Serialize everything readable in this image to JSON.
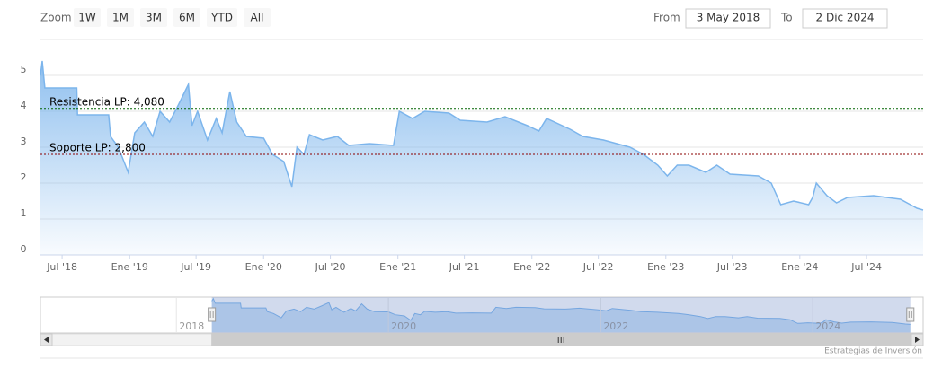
{
  "chart_data": {
    "type": "area",
    "range_selector": {
      "zoom_label": "Zoom",
      "buttons": [
        "1W",
        "1M",
        "3M",
        "6M",
        "YTD",
        "All"
      ],
      "from_label": "From",
      "from": "3 May 2018",
      "to_label": "To",
      "to": "2 Dic 2024"
    },
    "x": [
      "2018-05-03",
      "2018-05-08",
      "2018-05-15",
      "2018-08-10",
      "2018-08-12",
      "2018-11-05",
      "2018-11-10",
      "2018-12-01",
      "2018-12-28",
      "2019-01-15",
      "2019-02-10",
      "2019-03-05",
      "2019-03-25",
      "2019-04-20",
      "2019-05-15",
      "2019-06-10",
      "2019-06-20",
      "2019-07-05",
      "2019-08-01",
      "2019-08-25",
      "2019-09-10",
      "2019-10-01",
      "2019-10-20",
      "2019-11-15",
      "2020-01-01",
      "2020-01-25",
      "2020-02-25",
      "2020-03-18",
      "2020-04-01",
      "2020-04-20",
      "2020-05-05",
      "2020-06-10",
      "2020-07-20",
      "2020-08-20",
      "2020-10-15",
      "2020-12-20",
      "2021-01-05",
      "2021-02-10",
      "2021-03-15",
      "2021-05-20",
      "2021-06-20",
      "2021-09-01",
      "2021-10-20",
      "2021-12-20",
      "2022-01-20",
      "2022-02-10",
      "2022-04-15",
      "2022-05-20",
      "2022-07-15",
      "2022-09-25",
      "2022-11-01",
      "2022-12-10",
      "2023-01-05",
      "2023-02-01",
      "2023-03-05",
      "2023-04-20",
      "2023-05-20",
      "2023-06-25",
      "2023-09-10",
      "2023-10-15",
      "2023-11-10",
      "2023-12-15",
      "2024-01-25",
      "2024-02-05",
      "2024-02-15",
      "2024-03-15",
      "2024-04-10",
      "2024-05-10",
      "2024-07-20",
      "2024-10-01",
      "2024-11-15",
      "2024-12-02"
    ],
    "series": [
      {
        "color": "#7cb5ec",
        "values": [
          5.0,
          5.4,
          4.65,
          4.65,
          3.9,
          3.9,
          3.3,
          3.0,
          2.3,
          3.4,
          3.7,
          3.3,
          4.0,
          3.7,
          4.2,
          4.75,
          3.6,
          4.0,
          3.2,
          3.8,
          3.4,
          4.55,
          3.7,
          3.3,
          3.25,
          2.8,
          2.6,
          1.9,
          3.0,
          2.8,
          3.35,
          3.2,
          3.3,
          3.05,
          3.1,
          3.05,
          4.0,
          3.8,
          4.0,
          3.95,
          3.75,
          3.7,
          3.85,
          3.6,
          3.45,
          3.8,
          3.5,
          3.3,
          3.2,
          3.0,
          2.8,
          2.5,
          2.2,
          2.5,
          2.5,
          2.3,
          2.5,
          2.25,
          2.2,
          2.0,
          1.4,
          1.5,
          1.4,
          1.6,
          2.0,
          1.65,
          1.45,
          1.6,
          1.65,
          1.55,
          1.3,
          1.25
        ]
      }
    ],
    "xlim": [
      "2018-05-03",
      "2024-12-02"
    ],
    "xticks": [
      {
        "value": "2018-07-01",
        "label": "Jul '18"
      },
      {
        "value": "2019-01-01",
        "label": "Ene '19"
      },
      {
        "value": "2019-07-01",
        "label": "Jul '19"
      },
      {
        "value": "2020-01-01",
        "label": "Ene '20"
      },
      {
        "value": "2020-07-01",
        "label": "Jul '20"
      },
      {
        "value": "2021-01-01",
        "label": "Ene '21"
      },
      {
        "value": "2021-07-01",
        "label": "Jul '21"
      },
      {
        "value": "2022-01-01",
        "label": "Ene '22"
      },
      {
        "value": "2022-07-01",
        "label": "Jul '22"
      },
      {
        "value": "2023-01-01",
        "label": "Ene '23"
      },
      {
        "value": "2023-07-01",
        "label": "Jul '23"
      },
      {
        "value": "2024-01-01",
        "label": "Ene '24"
      },
      {
        "value": "2024-07-01",
        "label": "Jul '24"
      }
    ],
    "ylim": [
      0,
      6
    ],
    "yticks": [
      0,
      1,
      2,
      3,
      4,
      5
    ],
    "grid": true,
    "plot_lines": [
      {
        "value": 4.08,
        "label": "Resistencia LP: 4,080",
        "color": "#006400"
      },
      {
        "value": 2.8,
        "label": "Soporte LP: 2,800",
        "color": "#8b0000"
      }
    ],
    "navigator": {
      "xlim": [
        "2016-09-20",
        "2025-01-15"
      ],
      "ylim": [
        0,
        5.5
      ],
      "xticks": [
        {
          "value": "2018-01-01",
          "label": "2018"
        },
        {
          "value": "2020-01-01",
          "label": "2020"
        },
        {
          "value": "2022-01-01",
          "label": "2022"
        },
        {
          "value": "2024-01-01",
          "label": "2024"
        }
      ]
    },
    "credits": "Estrategias de Inversión"
  }
}
